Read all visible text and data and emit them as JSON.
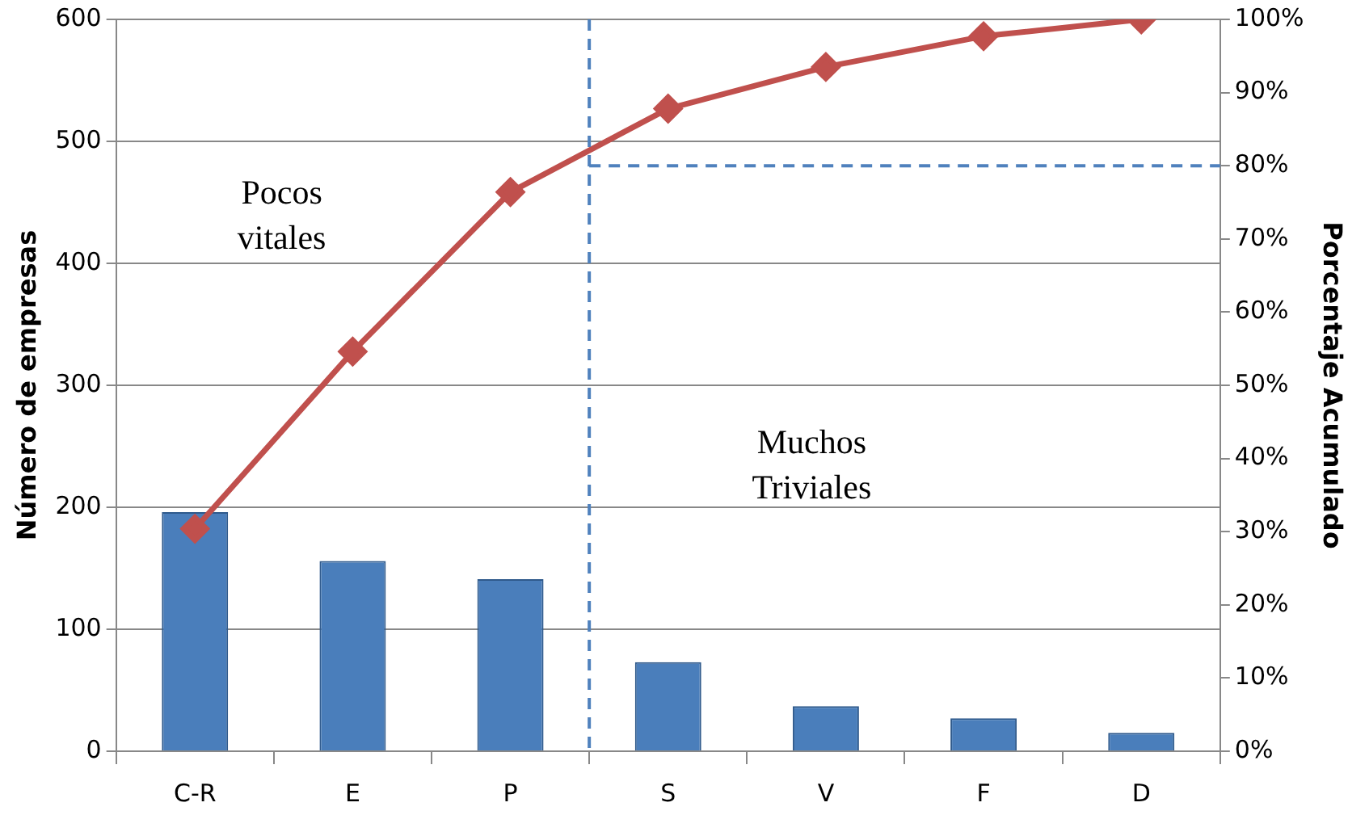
{
  "chart_data": {
    "type": "bar",
    "categories": [
      "C-R",
      "E",
      "P",
      "S",
      "V",
      "F",
      "D"
    ],
    "series": [
      {
        "color": "#4a7ebb",
        "values": [
          196,
          156,
          141,
          73,
          37,
          27,
          15
        ]
      },
      {
        "type": "line",
        "axis": "y2",
        "color": "#c0504d",
        "values": [
          30.4,
          54.6,
          76.4,
          87.8,
          93.5,
          97.7,
          100
        ]
      }
    ],
    "ylabel": "Número de empresas",
    "y2label": "Porcentaje Acumulado",
    "ylim": [
      0,
      600
    ],
    "yticks": [
      0,
      100,
      200,
      300,
      400,
      500,
      600
    ],
    "y2lim": [
      0,
      100
    ],
    "y2ticks": [
      {
        "value": 0,
        "label": "0%"
      },
      {
        "value": 10,
        "label": "10%"
      },
      {
        "value": 20,
        "label": "20%"
      },
      {
        "value": 30,
        "label": "30%"
      },
      {
        "value": 40,
        "label": "40%"
      },
      {
        "value": 50,
        "label": "50%"
      },
      {
        "value": 60,
        "label": "60%"
      },
      {
        "value": 70,
        "label": "70%"
      },
      {
        "value": 80,
        "label": "80%"
      },
      {
        "value": 90,
        "label": "90%"
      },
      {
        "value": 100,
        "label": "100%"
      }
    ],
    "grid": "y",
    "marker": "diamond",
    "line_style": "solid",
    "ref_lines": [
      {
        "axis": "x",
        "value": "P",
        "color": "#4f81bd",
        "line_style": "dashed"
      },
      {
        "axis": "y2",
        "value": 80,
        "color": "#4f81bd",
        "line_style": "dashed"
      }
    ],
    "annotations": [
      "Pocos vitales",
      "Muchos Triviales"
    ]
  }
}
